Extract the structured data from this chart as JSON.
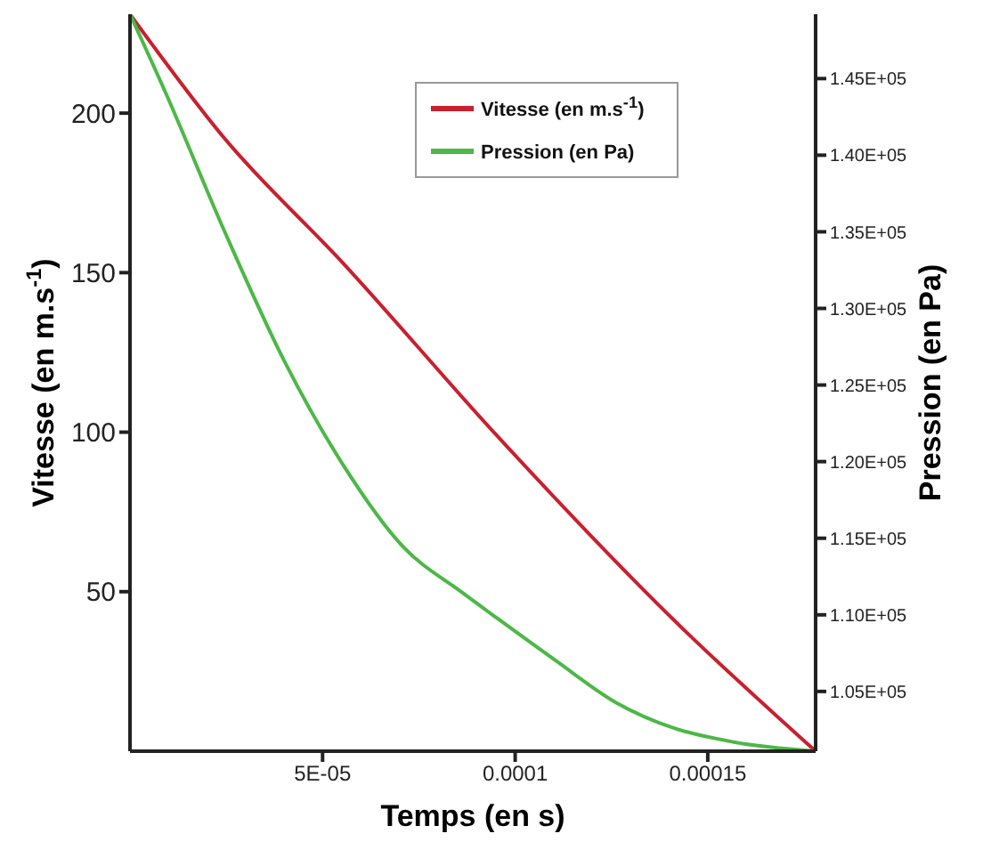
{
  "chart_data": {
    "type": "line",
    "xlabel": "Temps (en s)",
    "ylabel": "Vitesse (en m.s$^{-1}$)",
    "y2label": "Pression (en Pa)",
    "xlim": [
      0,
      0.000178
    ],
    "xticks": [
      {
        "value": 5e-05,
        "label": "5E-05"
      },
      0.0001,
      0.00015
    ],
    "ylim": [
      0,
      231
    ],
    "yticks": [
      50,
      100,
      150,
      200
    ],
    "y2lim": [
      101100,
      149200
    ],
    "y2ticks": [
      {
        "value": 105000,
        "label": "1.05E+05"
      },
      {
        "value": 110000,
        "label": "1.10E+05"
      },
      {
        "value": 115000,
        "label": "1.15E+05"
      },
      {
        "value": 120000,
        "label": "1.20E+05"
      },
      {
        "value": 125000,
        "label": "1.25E+05"
      },
      {
        "value": 130000,
        "label": "1.30E+05"
      },
      {
        "value": 135000,
        "label": "1.35E+05"
      },
      {
        "value": 140000,
        "label": "1.40E+05"
      },
      {
        "value": 145000,
        "label": "1.45E+05"
      }
    ],
    "legend": "top right",
    "marker": "none",
    "line_style": "solid",
    "series": [
      {
        "name": "Vitesse (en m.s$^{-1}$)",
        "color": "#c8202f",
        "x": [
          0,
          2.46e-05,
          5.53e-05,
          9.52e-05,
          0.0001413,
          0.000178
        ],
        "values": [
          231,
          192,
          153,
          99,
          41,
          0
        ]
      },
      {
        "name": "Pression (en Pa)",
        "color": "#4cb847",
        "axis": "y2",
        "x": [
          0,
          9.2e-06,
          2.46e-05,
          4e-05,
          5.53e-05,
          7.07e-05,
          8.6e-05,
          9.52e-05,
          0.0001106,
          0.000126,
          0.0001413,
          0.0001567,
          0.000178
        ],
        "values": [
          149200,
          144100,
          135000,
          126600,
          119800,
          114500,
          111500,
          109800,
          107000,
          104300,
          102600,
          101700,
          101100
        ]
      }
    ]
  }
}
